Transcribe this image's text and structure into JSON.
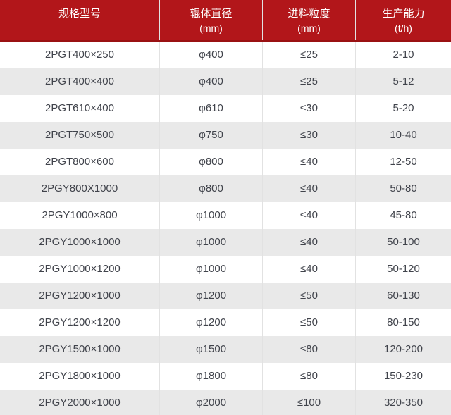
{
  "table": {
    "header": {
      "cols": [
        {
          "title": "规格型号",
          "unit": ""
        },
        {
          "title": "辊体直径",
          "unit": "(mm)"
        },
        {
          "title": "进料粒度",
          "unit": "(mm)"
        },
        {
          "title": "生产能力",
          "unit": "(t/h)"
        }
      ]
    },
    "rows": [
      [
        "2PGT400×250",
        "φ400",
        "≤25",
        "2-10"
      ],
      [
        "2PGT400×400",
        "φ400",
        "≤25",
        "5-12"
      ],
      [
        "2PGT610×400",
        "φ610",
        "≤30",
        "5-20"
      ],
      [
        "2PGT750×500",
        "φ750",
        "≤30",
        "10-40"
      ],
      [
        "2PGT800×600",
        "φ800",
        "≤40",
        "12-50"
      ],
      [
        "2PGY800X1000",
        "φ800",
        "≤40",
        "50-80"
      ],
      [
        "2PGY1000×800",
        "φ1000",
        "≤40",
        "45-80"
      ],
      [
        "2PGY1000×1000",
        "φ1000",
        "≤40",
        "50-100"
      ],
      [
        "2PGY1000×1200",
        "φ1000",
        "≤40",
        "50-120"
      ],
      [
        "2PGY1200×1000",
        "φ1200",
        "≤50",
        "60-130"
      ],
      [
        "2PGY1200×1200",
        "φ1200",
        "≤50",
        "80-150"
      ],
      [
        "2PGY1500×1000",
        "φ1500",
        "≤80",
        "120-200"
      ],
      [
        "2PGY1800×1000",
        "φ1800",
        "≤80",
        "150-230"
      ],
      [
        "2PGY2000×1000",
        "φ2000",
        "≤100",
        "320-350"
      ]
    ]
  },
  "colors": {
    "header_bg": "#b2161a",
    "header_border": "#9a1113",
    "header_text": "#ffffff",
    "alt_row_bg": "#e9e9e9",
    "separator": "#e2e2e2",
    "body_text": "#40434b"
  }
}
